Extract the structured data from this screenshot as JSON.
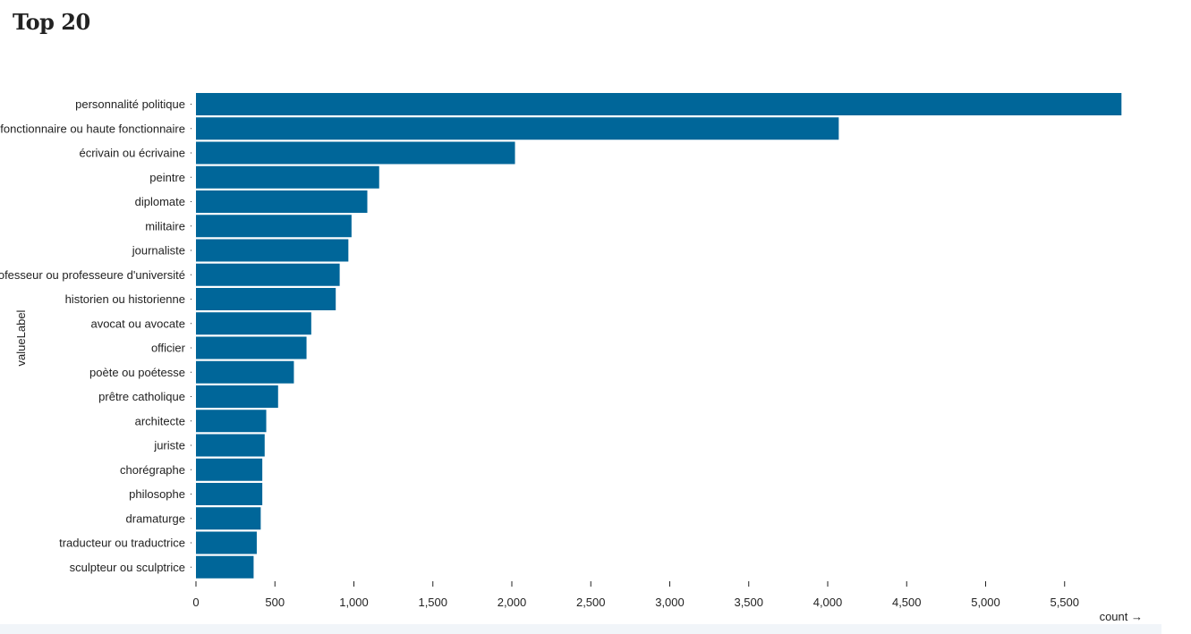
{
  "page": {
    "title": "Top 20"
  },
  "chart_data": {
    "type": "bar",
    "orientation": "horizontal",
    "title": "Top 20",
    "xlabel": "count →",
    "ylabel": "valueLabel",
    "xlim": [
      0,
      5900
    ],
    "xticks": [
      0,
      500,
      1000,
      1500,
      2000,
      2500,
      3000,
      3500,
      4000,
      4500,
      5000,
      5500
    ],
    "xtick_labels": [
      "0",
      "500",
      "1,000",
      "1,500",
      "2,000",
      "2,500",
      "3,000",
      "3,500",
      "4,000",
      "4,500",
      "5,000",
      "5,500"
    ],
    "grid": false,
    "bar_color": "#006699",
    "categories": [
      "personnalité politique",
      "fonctionnaire ou haute fonctionnaire",
      "écrivain ou écrivaine",
      "peintre",
      "diplomate",
      "militaire",
      "journaliste",
      "professeur ou professeure d'université",
      "historien ou historienne",
      "avocat ou avocate",
      "officier",
      "poète ou poétesse",
      "prêtre catholique",
      "architecte",
      "juriste",
      "chorégraphe",
      "philosophe",
      "dramaturge",
      "traducteur ou traductrice",
      "sculpteur ou sculptrice"
    ],
    "values": [
      5860,
      4070,
      2020,
      1160,
      1085,
      985,
      965,
      910,
      885,
      730,
      700,
      620,
      520,
      445,
      435,
      420,
      420,
      410,
      385,
      365
    ]
  }
}
